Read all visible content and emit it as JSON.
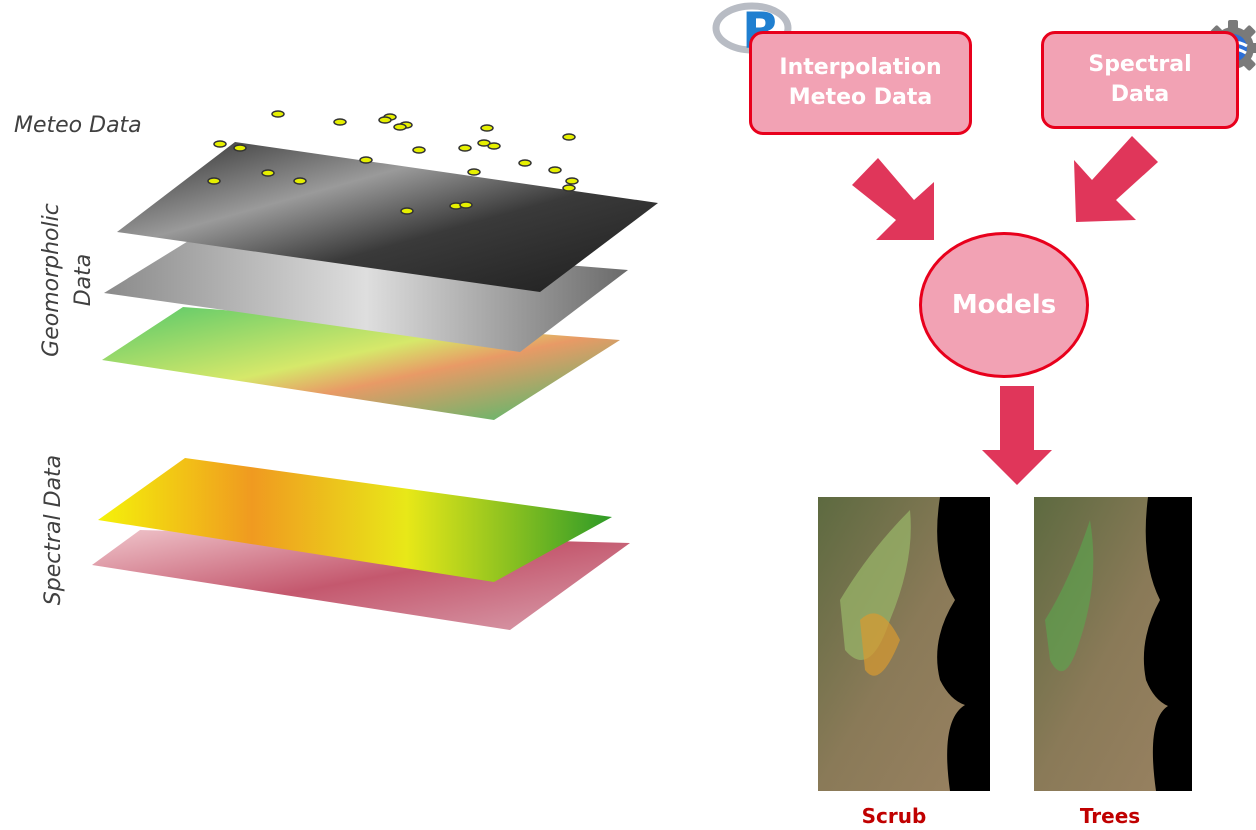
{
  "left_labels": {
    "meteo": "Meteo Data",
    "geomorphic_line1": "Geomorpholic",
    "geomorphic_line2": "Data",
    "spectral": "Spectral Data"
  },
  "flow": {
    "interpolation_line1": "Interpolation",
    "interpolation_line2": "Meteo Data",
    "spectral_line1": "Spectral",
    "spectral_line2": "Data",
    "models": "Models",
    "r_logo_letter": "R"
  },
  "outputs": {
    "scrub": "Scrub",
    "trees": "Trees"
  },
  "colors": {
    "box_fill": "#f2a2b4",
    "box_border": "#e8001c",
    "arrow": "#e0365a",
    "caption": "#c00000"
  }
}
